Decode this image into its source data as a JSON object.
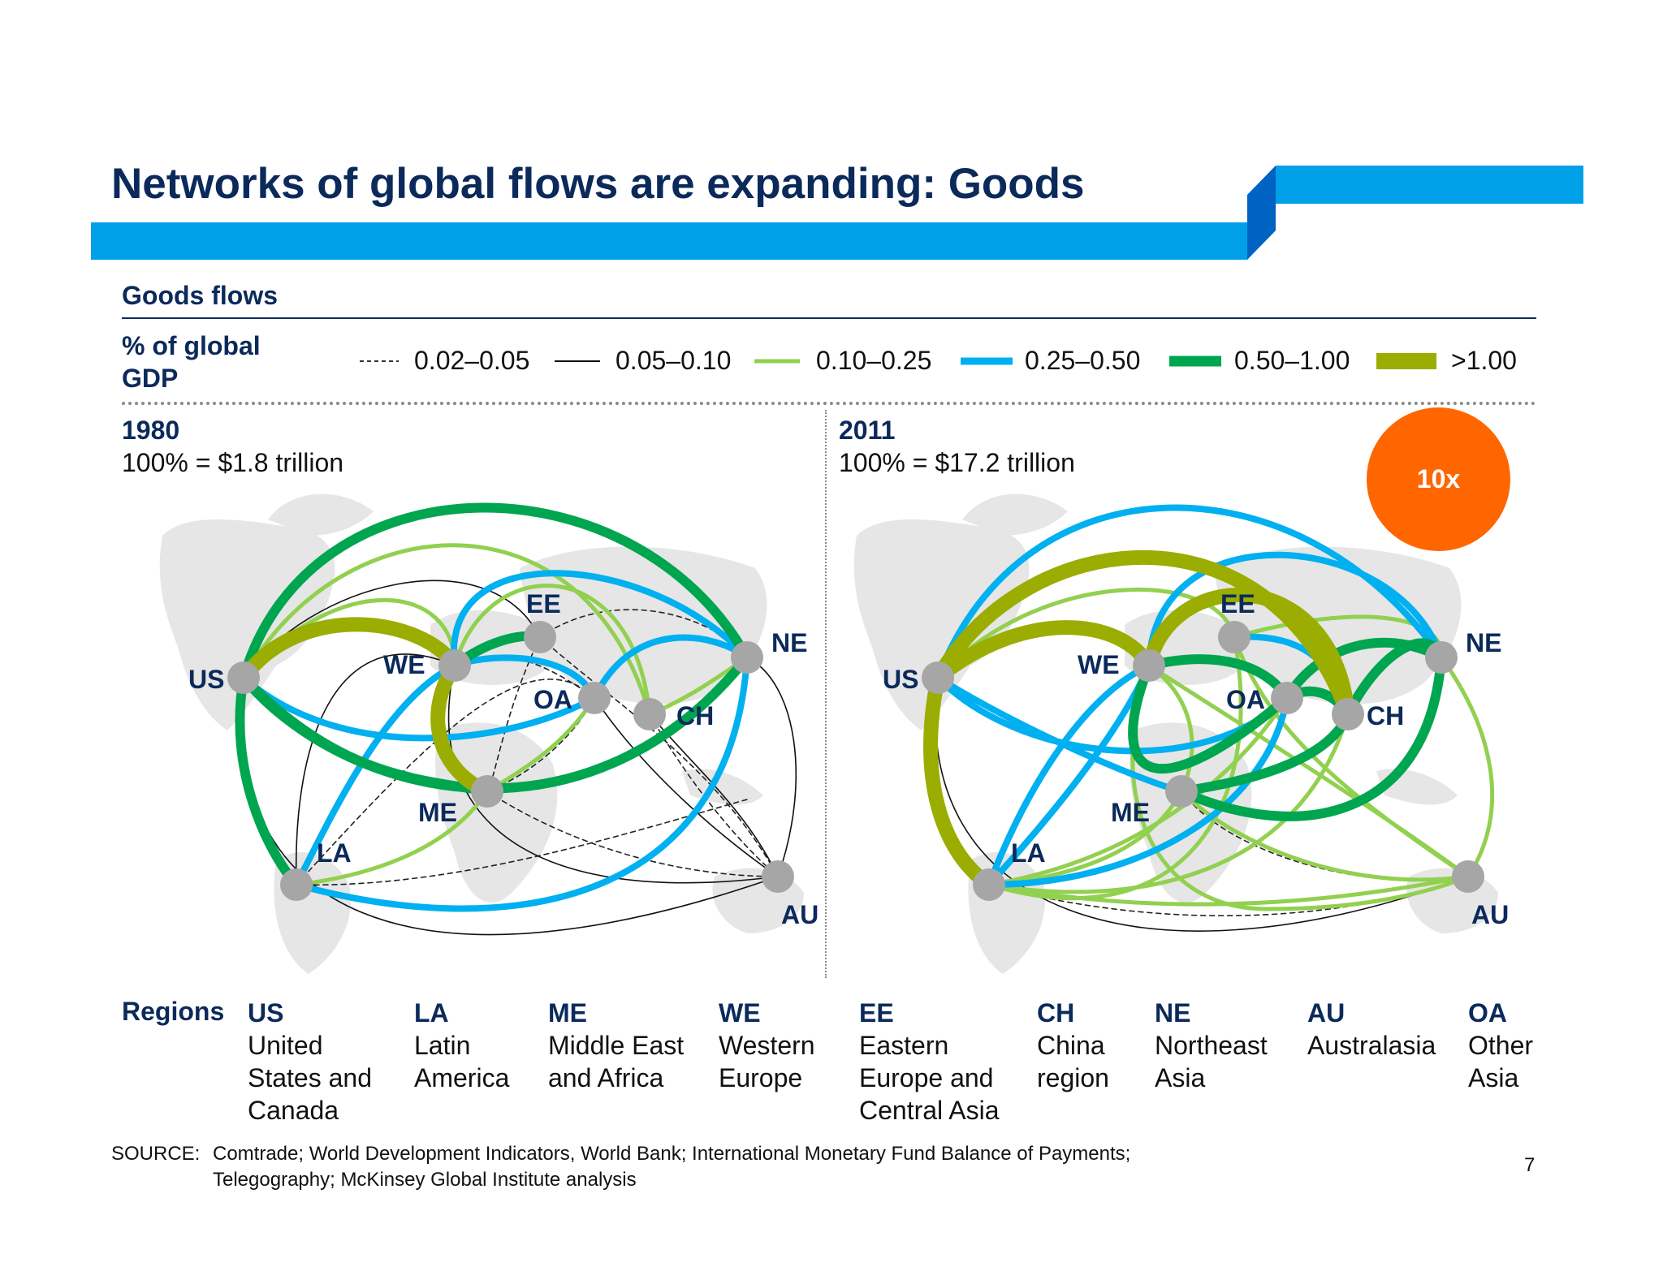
{
  "title": "Networks of global flows are expanding: Goods",
  "subtitle": "Goods flows",
  "legend": {
    "label": "% of global GDP",
    "items": [
      {
        "range": "0.02–0.05",
        "style": "dashed-thin",
        "color": "#333333"
      },
      {
        "range": "0.05–0.10",
        "style": "solid-thin",
        "color": "#111111"
      },
      {
        "range": "0.10–0.25",
        "style": "medium",
        "color": "#92d050"
      },
      {
        "range": "0.25–0.50",
        "style": "thick",
        "color": "#00b0f0"
      },
      {
        "range": "0.50–1.00",
        "style": "thicker",
        "color": "#00a550"
      },
      {
        "range": ">1.00",
        "style": "thickest",
        "color": "#9aad00"
      }
    ]
  },
  "periods": [
    {
      "year": "1980",
      "total": "100% = $1.8 trillion"
    },
    {
      "year": "2011",
      "total": "100% = $17.2 trillion"
    }
  ],
  "growth_badge": "10x",
  "regions_title": "Regions",
  "regions": [
    {
      "code": "US",
      "name": "United States and Canada"
    },
    {
      "code": "LA",
      "name": "Latin America"
    },
    {
      "code": "ME",
      "name": "Middle East and Africa"
    },
    {
      "code": "WE",
      "name": "Western Europe"
    },
    {
      "code": "EE",
      "name": "Eastern Europe and Central Asia"
    },
    {
      "code": "CH",
      "name": "China region"
    },
    {
      "code": "NE",
      "name": "Northeast Asia"
    },
    {
      "code": "AU",
      "name": "Australasia"
    },
    {
      "code": "OA",
      "name": "Other Asia"
    }
  ],
  "source_label": "SOURCE:",
  "source_text": "Comtrade; World Development Indicators, World Bank; International Monetary Fund Balance of Payments; Telegography; McKinsey Global Institute analysis",
  "page_number": "7",
  "node_labels": {
    "US": "US",
    "LA": "LA",
    "ME": "ME",
    "WE": "WE",
    "EE": "EE",
    "CH": "CH",
    "NE": "NE",
    "AU": "AU",
    "OA": "OA"
  }
}
